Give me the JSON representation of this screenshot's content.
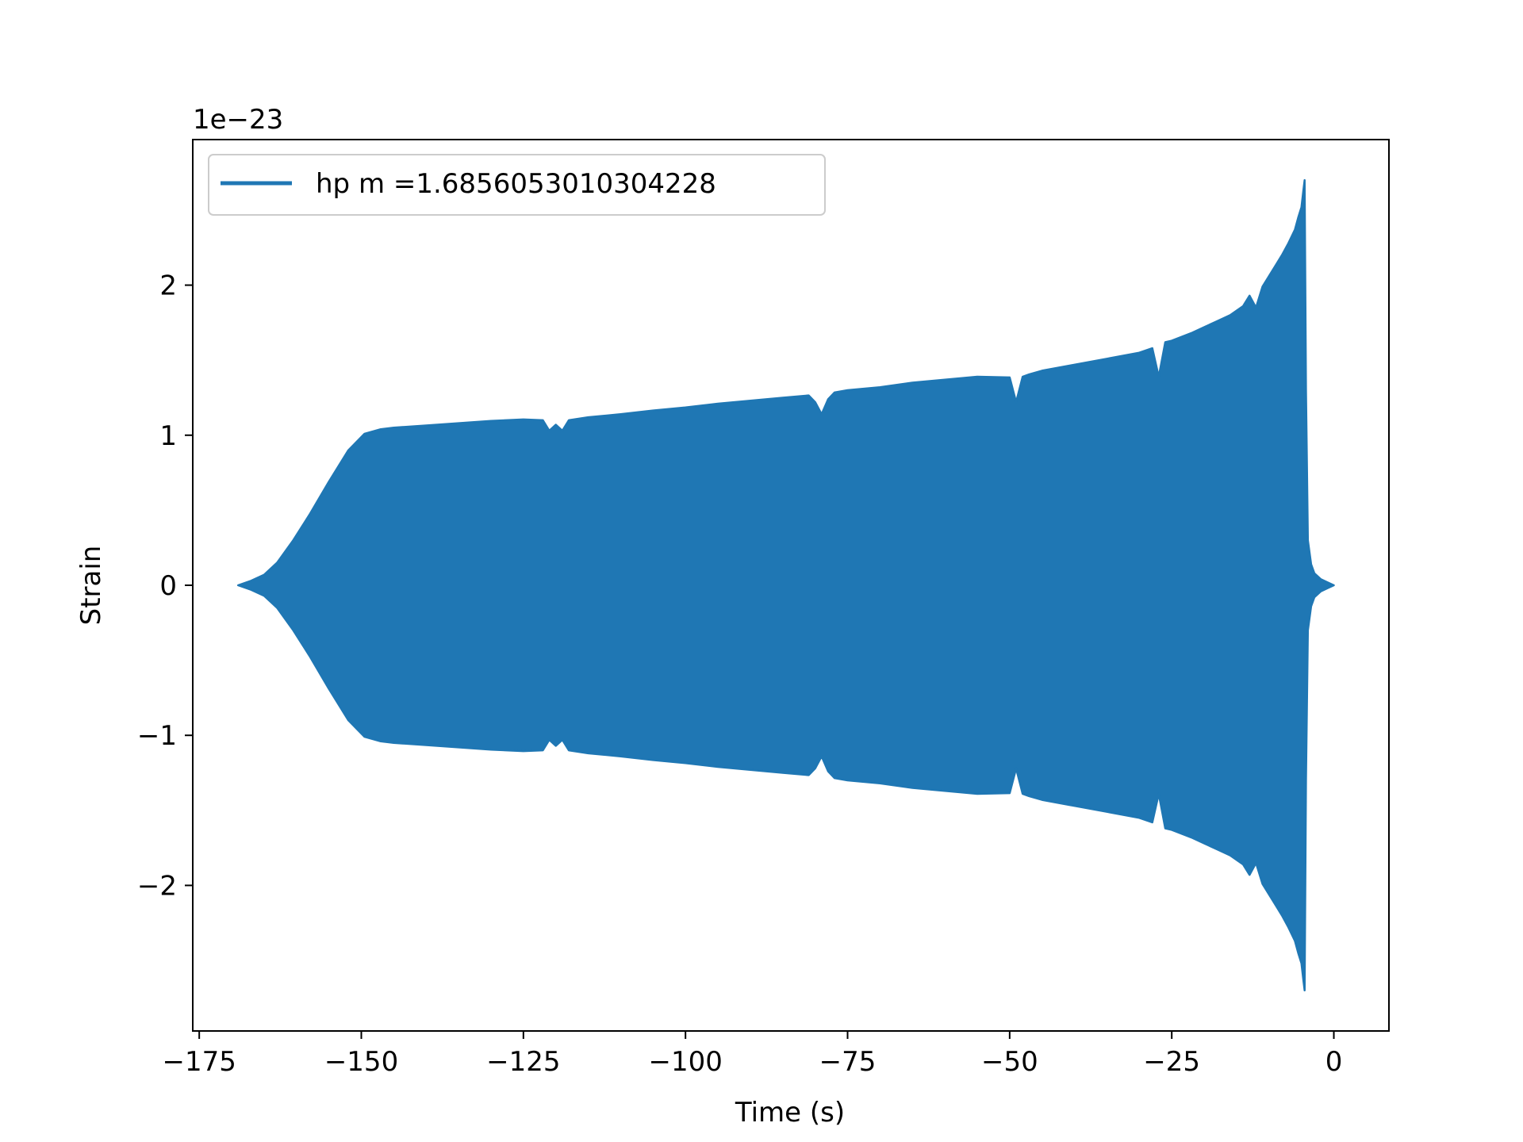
{
  "chart_data": {
    "type": "line",
    "xlabel": "Time (s)",
    "ylabel": "Strain",
    "y_offset_label": "1e−23",
    "xlim": [
      -176,
      8.5
    ],
    "ylim": [
      -2.97,
      2.97
    ],
    "xticks": [
      -175,
      -150,
      -125,
      -100,
      -75,
      -50,
      -25,
      0
    ],
    "xtick_labels": [
      "−175",
      "−150",
      "−125",
      "−100",
      "−75",
      "−50",
      "−25",
      "0"
    ],
    "yticks": [
      -2,
      -1,
      0,
      1,
      2
    ],
    "ytick_labels": [
      "−2",
      "−1",
      "0",
      "1",
      "2"
    ],
    "legend_position": "top-left",
    "grid": false,
    "series": [
      {
        "name": "hp m =1.6856053010304228",
        "color": "#1f77b4",
        "envelope": {
          "t": [
            -169,
            -167,
            -165,
            -163,
            -160.5,
            -158,
            -155,
            -152,
            -149.5,
            -147,
            -145,
            -140,
            -135,
            -130,
            -125,
            -122,
            -121,
            -120,
            -119,
            -118,
            -115,
            -110,
            -105,
            -100,
            -95,
            -90,
            -85,
            -81,
            -80,
            -79,
            -78,
            -77,
            -75,
            -70,
            -65,
            -60,
            -55,
            -50,
            -49,
            -48,
            -47,
            -45,
            -40,
            -35,
            -30,
            -28,
            -27,
            -26,
            -25,
            -22,
            -20,
            -18,
            -16,
            -14,
            -13,
            -12,
            -11,
            -10,
            -9,
            -8,
            -7,
            -6,
            -5.5,
            -5,
            -4.7,
            -4.5,
            -4.3,
            -4,
            -3.5,
            -3,
            -2,
            -1,
            0
          ],
          "amplitude": [
            0.0,
            0.03,
            0.07,
            0.15,
            0.3,
            0.47,
            0.69,
            0.9,
            1.01,
            1.04,
            1.05,
            1.065,
            1.08,
            1.095,
            1.105,
            1.1,
            1.03,
            1.07,
            1.03,
            1.1,
            1.12,
            1.14,
            1.165,
            1.185,
            1.21,
            1.23,
            1.25,
            1.265,
            1.22,
            1.14,
            1.24,
            1.285,
            1.3,
            1.32,
            1.35,
            1.37,
            1.39,
            1.385,
            1.22,
            1.39,
            1.405,
            1.43,
            1.47,
            1.51,
            1.55,
            1.58,
            1.39,
            1.62,
            1.63,
            1.68,
            1.72,
            1.76,
            1.8,
            1.86,
            1.93,
            1.85,
            1.99,
            2.06,
            2.13,
            2.2,
            2.28,
            2.37,
            2.45,
            2.52,
            2.63,
            2.7,
            1.3,
            0.3,
            0.14,
            0.08,
            0.04,
            0.02,
            0.0
          ]
        }
      }
    ]
  }
}
